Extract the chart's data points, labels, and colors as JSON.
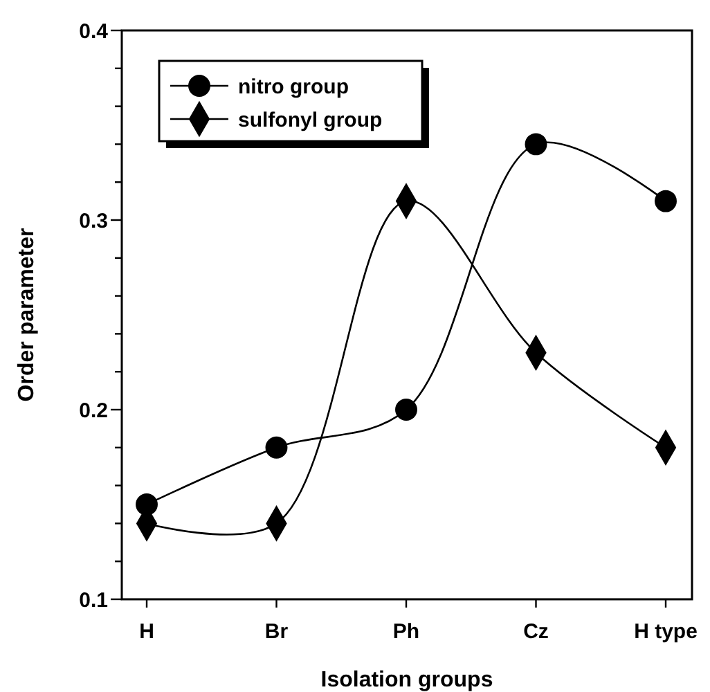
{
  "chart_data": {
    "type": "line",
    "xlabel": "Isolation groups",
    "ylabel": "Order parameter",
    "categories": [
      "H",
      "Br",
      "Ph",
      "Cz",
      "H type"
    ],
    "series": [
      {
        "name": "nitro group",
        "color": "#000000",
        "marker": "circle",
        "values": [
          0.15,
          0.18,
          0.2,
          0.34,
          0.31
        ]
      },
      {
        "name": "sulfonyl group",
        "color": "#000000",
        "marker": "diamond",
        "values": [
          0.14,
          0.14,
          0.31,
          0.23,
          0.18
        ]
      }
    ],
    "ylim": [
      0.1,
      0.4
    ],
    "yticks": [
      0.1,
      {
        "value": 0.12,
        "label": null
      },
      {
        "value": 0.14,
        "label": null
      },
      {
        "value": 0.16,
        "label": null
      },
      {
        "value": 0.18,
        "label": null
      },
      0.2,
      {
        "value": 0.22,
        "label": null
      },
      {
        "value": 0.24,
        "label": null
      },
      {
        "value": 0.26,
        "label": null
      },
      {
        "value": 0.28,
        "label": null
      },
      0.3,
      {
        "value": 0.32,
        "label": null
      },
      {
        "value": 0.34,
        "label": null
      },
      {
        "value": 0.36,
        "label": null
      },
      {
        "value": 0.38,
        "label": null
      },
      0.4
    ],
    "grid": false,
    "legend": "top left",
    "line_style": "solid"
  }
}
